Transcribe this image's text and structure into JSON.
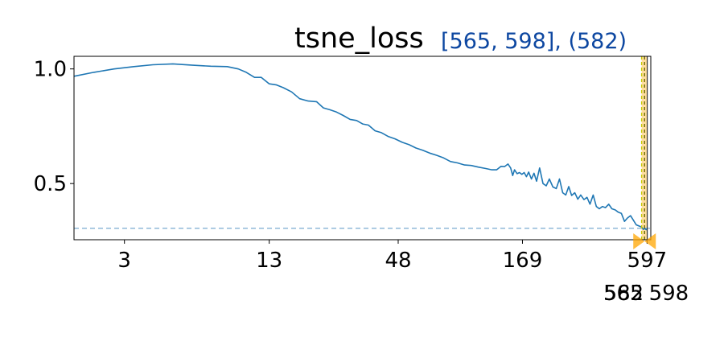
{
  "colors": {
    "line": "#1f77b4",
    "reference_line": "#8fb8d8",
    "range_title": "#0d47a1",
    "highlight_band": "#ffb52a",
    "highlight_marker": "#ffa500",
    "vline_dark": "#6b6b00",
    "vline_yellow": "#c8c800"
  },
  "chart_data": {
    "type": "line",
    "title": "tsne_loss",
    "range_label": "[565, 598], (582)",
    "x_scale": "log",
    "xlim": [
      1.8,
      620
    ],
    "ylim": [
      0.255,
      1.055
    ],
    "y_ticks": [
      0.5,
      1.0
    ],
    "y_tick_labels": [
      "0.5",
      "1.0"
    ],
    "x_ticks": [
      3,
      13,
      48,
      169,
      597
    ],
    "x_tick_labels": [
      "3",
      "13",
      "48",
      "169",
      "597"
    ],
    "highlight": {
      "range": [
        565,
        598
      ],
      "best": 582,
      "labels": [
        "565",
        "582",
        "598"
      ]
    },
    "reference_y": 0.305,
    "grid": false,
    "series": [
      {
        "x": [
          1.8,
          2.2,
          2.7,
          3.3,
          4.0,
          4.9,
          6.0,
          7.2,
          8.5,
          9.5,
          10.3,
          11.2,
          12.0,
          13.0,
          14.0,
          15.0,
          16.3,
          17.7,
          19.3,
          21.0,
          22.5,
          24.0,
          25.7,
          27.5,
          29.5,
          31.5,
          33.5,
          35.5,
          38.0,
          40.5,
          43.5,
          46.5,
          50.0,
          53.5,
          57.5,
          61.5,
          66.0,
          71.0,
          76.0,
          81.5,
          87.5,
          94.0,
          100.5,
          108.0,
          116.0,
          124.0,
          130.0,
          136.0,
          141.0,
          146.0,
          150.0,
          153.0,
          156.0,
          160.0,
          164.0,
          168.0,
          172.0,
          176.0,
          180.0,
          185.0,
          190.0,
          195.0,
          201.0,
          208.0,
          215.0,
          222.0,
          230.0,
          238.0,
          246.0,
          254.0,
          262.0,
          270.0,
          278.0,
          287.0,
          296.0,
          305.0,
          315.0,
          325.0,
          335.0,
          346.0,
          357.0,
          368.0,
          380.0,
          392.0,
          405.0,
          418.0,
          432.0,
          446.0,
          460.0,
          475.0,
          490.0,
          505.0,
          520.0,
          535.0,
          550.0,
          565.0,
          575.0,
          582.0,
          590.0,
          598.0
        ],
        "y": [
          0.968,
          0.985,
          1.0,
          1.01,
          1.018,
          1.022,
          1.016,
          1.012,
          1.01,
          1.0,
          0.985,
          0.963,
          0.963,
          0.935,
          0.93,
          0.918,
          0.9,
          0.87,
          0.86,
          0.857,
          0.83,
          0.822,
          0.812,
          0.797,
          0.78,
          0.775,
          0.76,
          0.755,
          0.73,
          0.722,
          0.705,
          0.695,
          0.68,
          0.67,
          0.655,
          0.645,
          0.633,
          0.623,
          0.612,
          0.596,
          0.59,
          0.581,
          0.579,
          0.572,
          0.566,
          0.56,
          0.56,
          0.575,
          0.574,
          0.585,
          0.568,
          0.535,
          0.56,
          0.543,
          0.548,
          0.54,
          0.548,
          0.53,
          0.55,
          0.52,
          0.545,
          0.51,
          0.568,
          0.5,
          0.49,
          0.52,
          0.485,
          0.478,
          0.52,
          0.46,
          0.45,
          0.487,
          0.448,
          0.46,
          0.432,
          0.45,
          0.43,
          0.44,
          0.41,
          0.45,
          0.4,
          0.39,
          0.4,
          0.395,
          0.41,
          0.39,
          0.385,
          0.375,
          0.37,
          0.335,
          0.35,
          0.36,
          0.34,
          0.32,
          0.315,
          0.31,
          0.3,
          0.305,
          0.3,
          0.298
        ]
      }
    ]
  }
}
